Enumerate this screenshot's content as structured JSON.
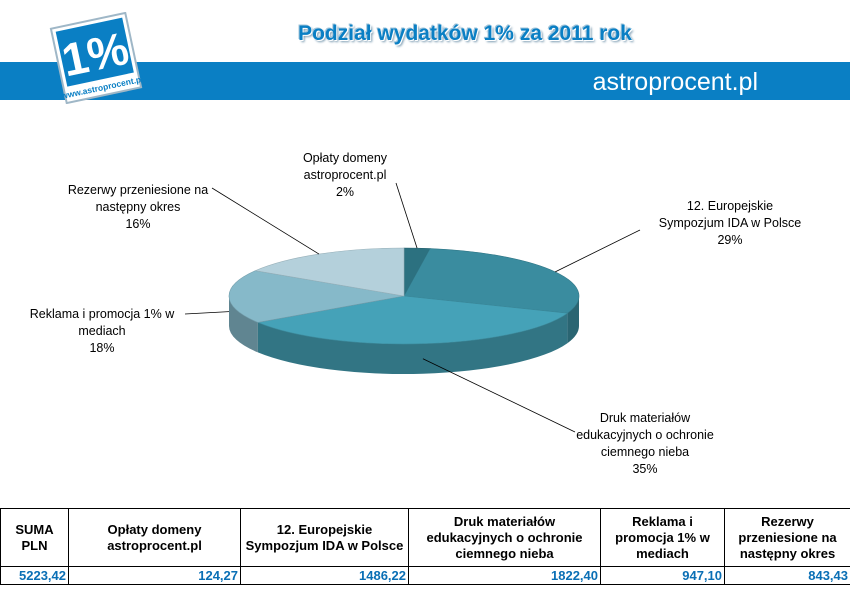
{
  "header": {
    "title": "Podział wydatków 1% za 2011 rok",
    "site_name": "astroprocent.pl",
    "logo_mark": "1%",
    "logo_url": "www.astroprocent.pl"
  },
  "chart_data": {
    "type": "pie",
    "title": "Podział wydatków 1% za 2011 rok",
    "slices": [
      {
        "label_lines": [
          "Opłaty domeny",
          "astroprocent.pl"
        ],
        "label": "Opłaty domeny astroprocent.pl",
        "value": 124.27,
        "percent_label": "2%",
        "color": "#2c7180"
      },
      {
        "label_lines": [
          "12. Europejskie",
          "Sympozjum IDA w Polsce"
        ],
        "label": "12. Europejskie Sympozjum IDA w Polsce",
        "value": 1486.22,
        "percent_label": "29%",
        "color": "#3a8c9f"
      },
      {
        "label_lines": [
          "Druk materiałów",
          "edukacyjnych o ochronie",
          "ciemnego nieba"
        ],
        "label": "Druk materiałów edukacyjnych o ochronie ciemnego nieba",
        "value": 1822.4,
        "percent_label": "35%",
        "color": "#45a2b8"
      },
      {
        "label_lines": [
          "Reklama i promocja 1% w",
          "mediach"
        ],
        "label": "Reklama i promocja 1% w mediach",
        "value": 947.1,
        "percent_label": "18%",
        "color": "#86b9c9"
      },
      {
        "label_lines": [
          "Rezerwy przeniesione na",
          "następny okres"
        ],
        "label": "Rezerwy przeniesione na następny okres",
        "value": 843.43,
        "percent_label": "16%",
        "color": "#b4d0db"
      }
    ]
  },
  "table": {
    "headers": [
      "SUMA PLN",
      "Opłaty domeny astroprocent.pl",
      "12. Europejskie Sympozjum IDA w Polsce",
      "Druk materiałów edukacyjnych o ochronie ciemnego nieba",
      "Reklama i promocja 1% w mediach",
      "Rezerwy przeniesione na następny okres"
    ],
    "values": [
      "5223,42",
      "124,27",
      "1486,22",
      "1822,40",
      "947,10",
      "843,43"
    ]
  }
}
